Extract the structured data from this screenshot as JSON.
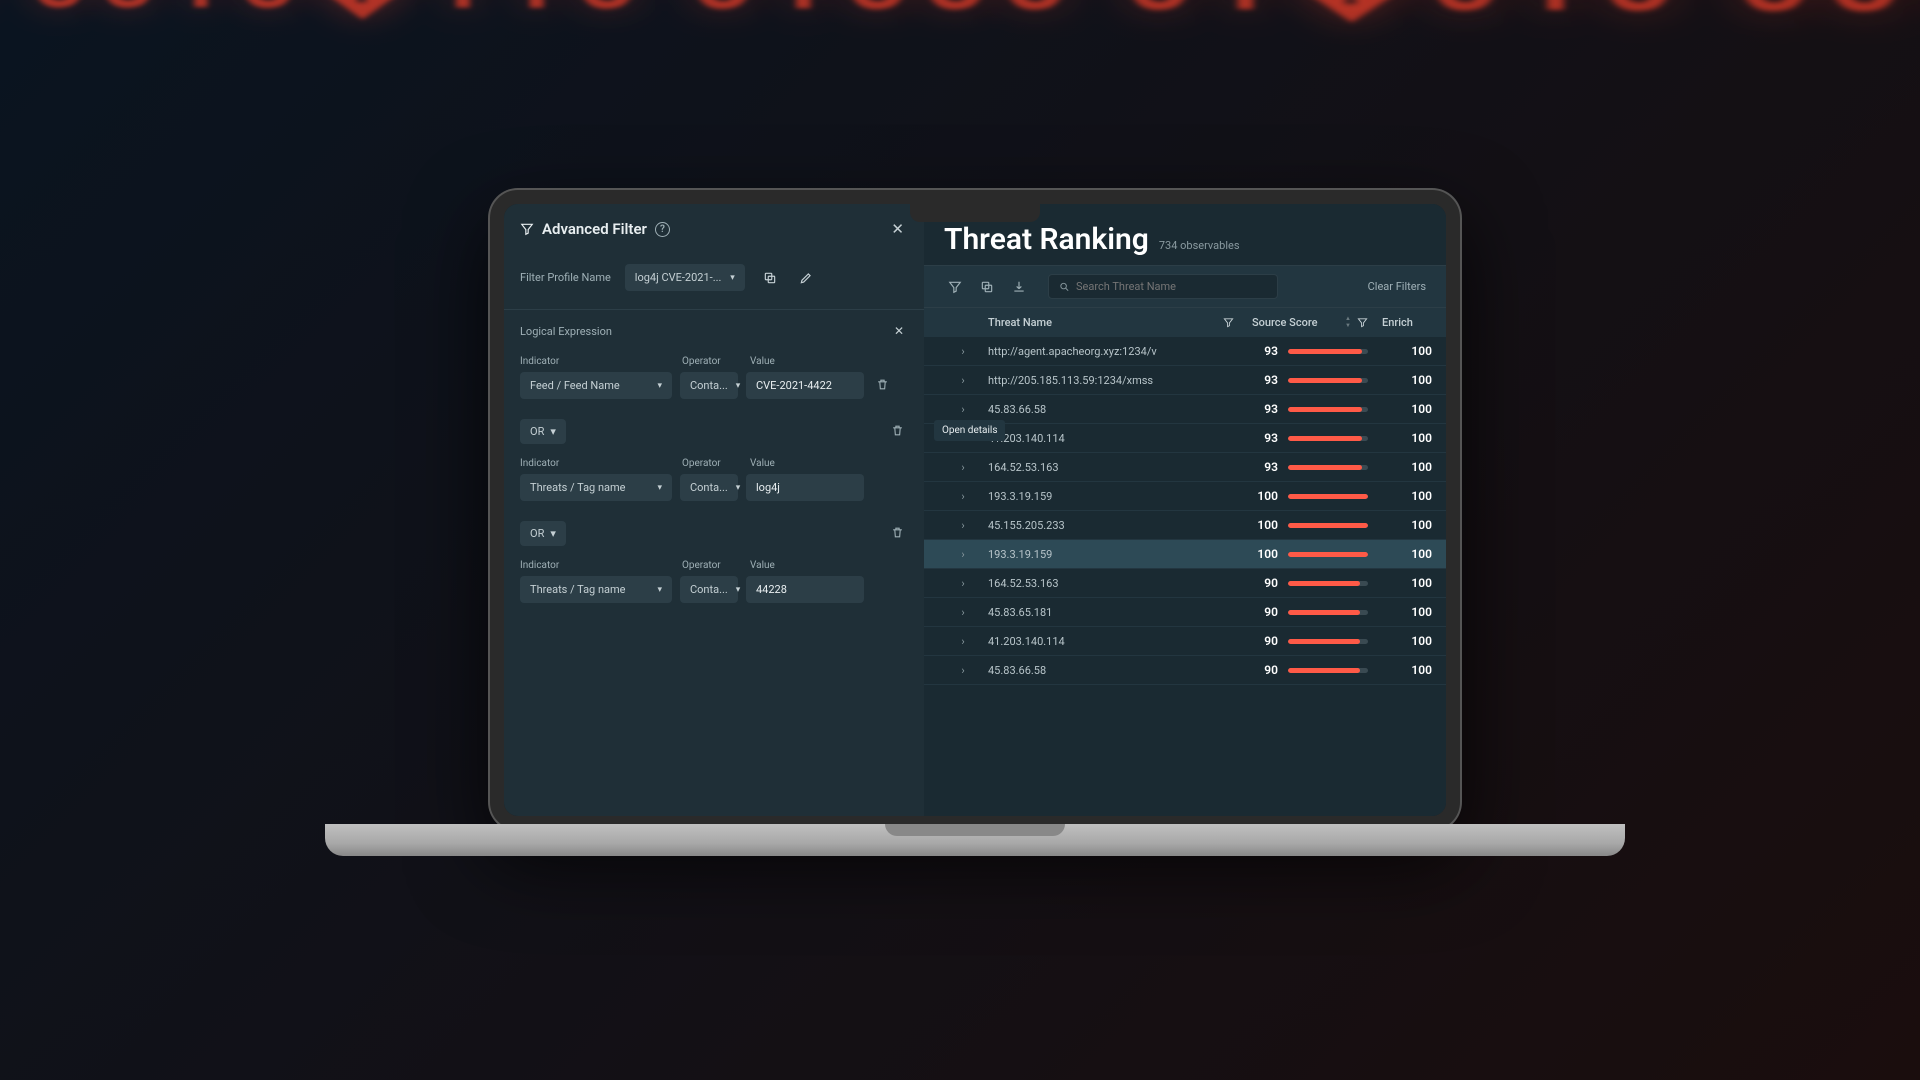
{
  "colors": {
    "bg_app": "#1a2a32",
    "bg_panel": "#1f2f37",
    "bg_elev": "#223640",
    "bg_input": "#2c3e47",
    "text_primary": "#e8eef0",
    "text_muted": "#9fb0b6",
    "accent_red": "#ff5a47"
  },
  "left": {
    "title": "Advanced Filter",
    "profile_label": "Filter Profile Name",
    "profile_value": "log4j CVE-2021-...",
    "logic_title": "Logical Expression",
    "labels": {
      "indicator": "Indicator",
      "operator": "Operator",
      "value": "Value"
    },
    "rows": [
      {
        "indicator": "Feed / Feed Name",
        "operator": "Conta...",
        "value": "CVE-2021-4422"
      },
      {
        "indicator": "Threats / Tag name",
        "operator": "Conta...",
        "value": "log4j"
      },
      {
        "indicator": "Threats / Tag name",
        "operator": "Conta...",
        "value": "44228"
      }
    ],
    "or_label": "OR"
  },
  "right": {
    "title": "Threat Ranking",
    "subtitle": "734 observables",
    "search_placeholder": "Search Threat Name",
    "clear_label": "Clear Filters",
    "tooltip": "Open details",
    "columns": {
      "name": "Threat Name",
      "score": "Source Score",
      "enrich": "Enrich"
    },
    "rows": [
      {
        "name": "http://agent.apacheorg.xyz:1234/v",
        "score": 93,
        "enrich": 100
      },
      {
        "name": "http://205.185.113.59:1234/xmss",
        "score": 93,
        "enrich": 100
      },
      {
        "name": "45.83.66.58",
        "score": 93,
        "enrich": 100
      },
      {
        "name": "41.203.140.114",
        "score": 93,
        "enrich": 100
      },
      {
        "name": "164.52.53.163",
        "score": 93,
        "enrich": 100
      },
      {
        "name": "193.3.19.159",
        "score": 100,
        "enrich": 100
      },
      {
        "name": "45.155.205.233",
        "score": 100,
        "enrich": 100
      },
      {
        "name": "193.3.19.159",
        "score": 100,
        "enrich": 100,
        "highlight": true
      },
      {
        "name": "164.52.53.163",
        "score": 90,
        "enrich": 100
      },
      {
        "name": "45.83.65.181",
        "score": 90,
        "enrich": 100
      },
      {
        "name": "41.203.140.114",
        "score": 90,
        "enrich": 100
      },
      {
        "name": "45.83.66.58",
        "score": 90,
        "enrich": 100
      }
    ]
  }
}
